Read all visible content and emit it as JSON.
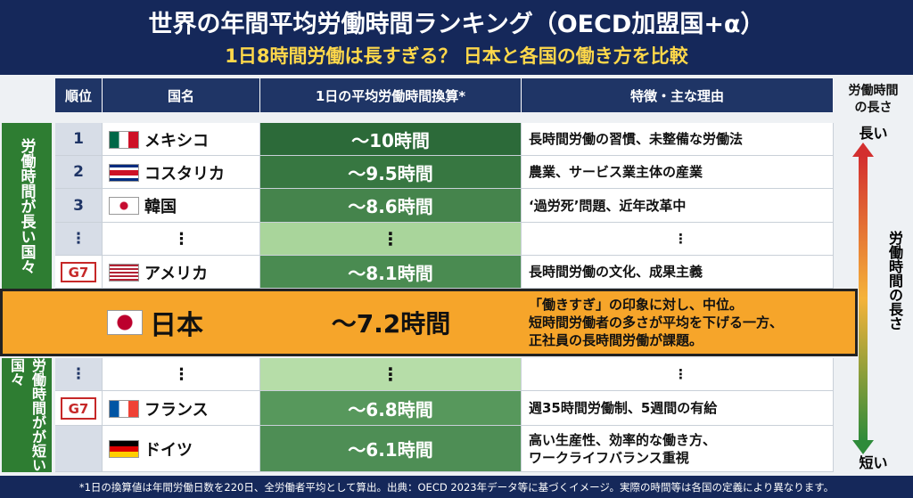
{
  "header": {
    "title": "世界の年間平均労働時間ランキング（OECD加盟国+α）",
    "subtitle": "1日8時間労働は長すぎる？ 日本と各国の働き方を比較"
  },
  "table": {
    "columns": [
      "順位",
      "国名",
      "1日の平均労働時間換算*",
      "特徴・主な理由"
    ],
    "rows": [
      {
        "rank": "1",
        "country": "メキシコ",
        "hours": "〜10時間",
        "feature": [
          "長時間労働の習慣、未整備な労働法"
        ]
      },
      {
        "rank": "2",
        "country": "コスタリカ",
        "hours": "〜9.5時間",
        "feature": [
          "農業、サービス業主体の産業"
        ]
      },
      {
        "rank": "3",
        "country": "韓国",
        "hours": "〜8.6時間",
        "feature": [
          "‘過労死’問題、近年改革中"
        ]
      },
      {
        "rank": "⋮",
        "country": "⋮",
        "hours": "⋮",
        "feature": [
          "⋮"
        ]
      },
      {
        "badge": "G7",
        "country": "アメリカ",
        "hours": "〜8.1時間",
        "feature": [
          "長時間労働の文化、成果主義"
        ]
      },
      {
        "country": "日本",
        "hours": "〜7.2時間",
        "feature": [
          "「働きすぎ」の印象に対し、中位。",
          "短時間労働者の多さが平均を下げる一方、",
          "正社員の長時間労働が課題。"
        ]
      },
      {
        "rank": "⋮",
        "country": "⋮",
        "hours": "⋮",
        "feature": [
          "⋮"
        ]
      },
      {
        "badge": "G7",
        "country": "フランス",
        "hours": "〜6.8時間",
        "feature": [
          "週35時間労働制、5週間の有給"
        ]
      },
      {
        "country": "ドイツ",
        "hours": "〜6.1時間",
        "feature": [
          "高い生産性、効率的な働き方、",
          "ワークライフバランス重視"
        ]
      }
    ]
  },
  "side_labels": {
    "long": "労働時間が長い国々",
    "short": "労働時間がが短い国々"
  },
  "axis": {
    "title": [
      "労働時間",
      "の長さ"
    ],
    "long": "長い",
    "short": "短い",
    "label": "労働時間の長さ"
  },
  "footnote": "*1日の換算値は年間労働日数を220日、全労働者平均として算出。出典：OECD 2023年データ等に基づくイメージ。実際の時間等は各国の定義により異なります。"
}
